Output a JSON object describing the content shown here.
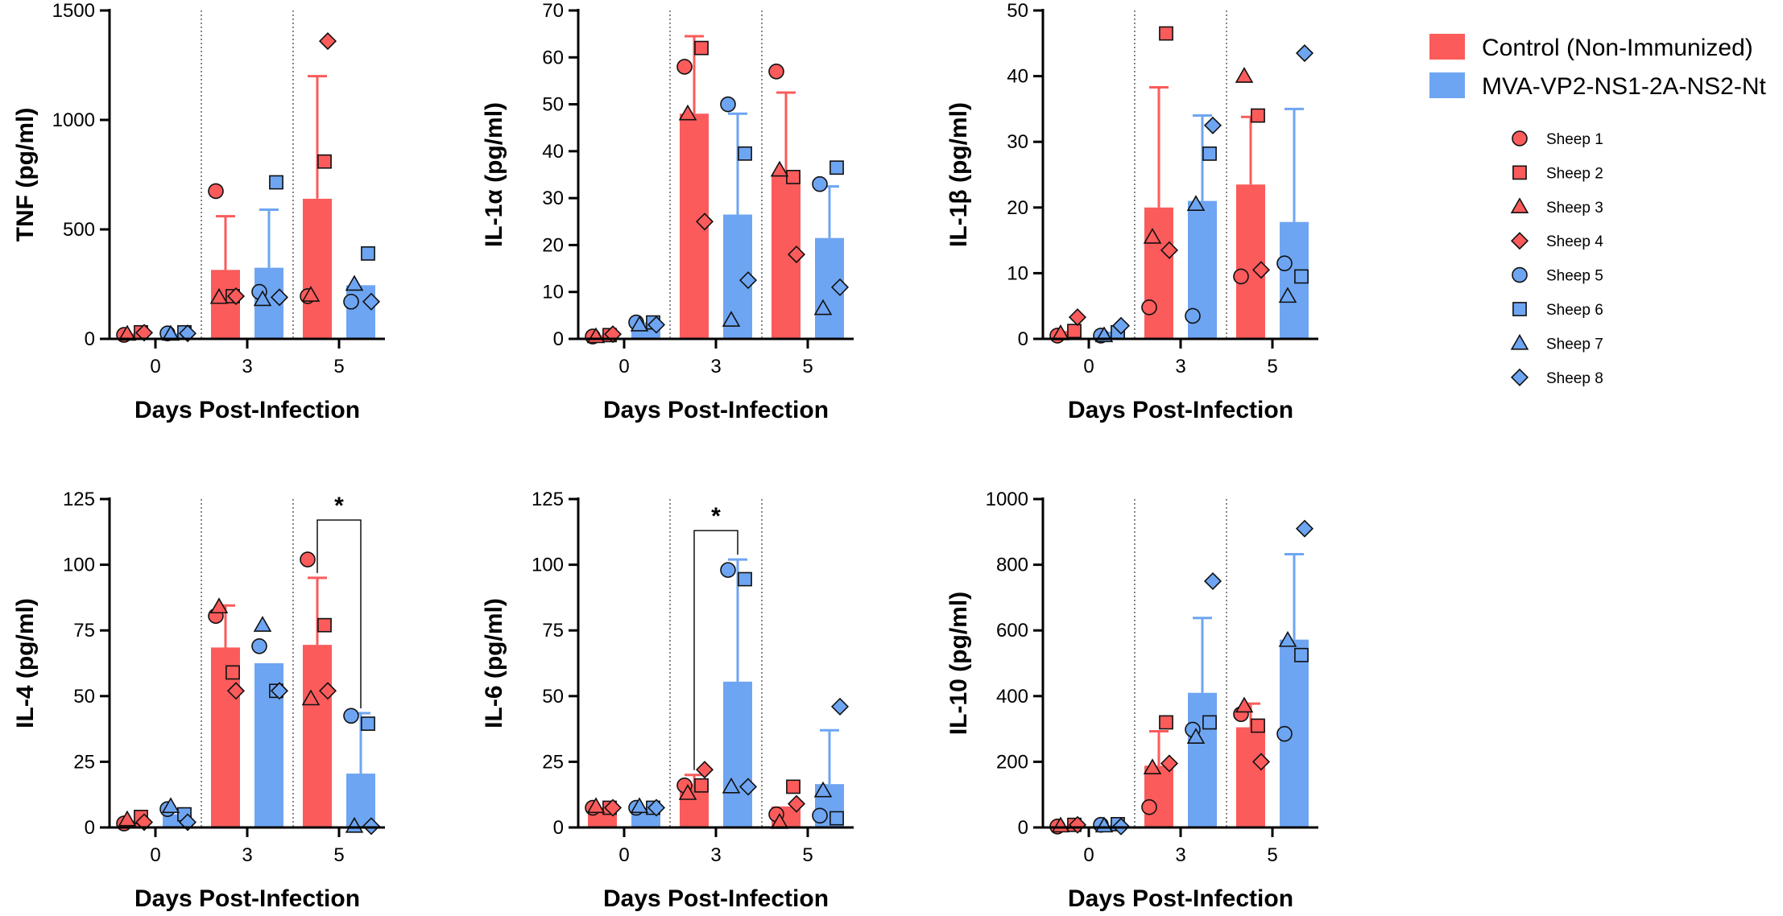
{
  "colors": {
    "control": "#fb5b5b",
    "vaccine": "#6ea5f2",
    "edge": "#111111",
    "axis": "#000000",
    "divider": "#555555"
  },
  "legend": {
    "groups": [
      {
        "label": "Control (Non-Immunized)",
        "color_key": "control"
      },
      {
        "label": "MVA-VP2-NS1-2A-NS2-Nt",
        "color_key": "vaccine"
      }
    ],
    "sheep": [
      {
        "label": "Sheep 1",
        "shape": "circle",
        "color_key": "control"
      },
      {
        "label": "Sheep 2",
        "shape": "square",
        "color_key": "control"
      },
      {
        "label": "Sheep 3",
        "shape": "triangle",
        "color_key": "control"
      },
      {
        "label": "Sheep 4",
        "shape": "diamond",
        "color_key": "control"
      },
      {
        "label": "Sheep 5",
        "shape": "circle",
        "color_key": "vaccine"
      },
      {
        "label": "Sheep 6",
        "shape": "square",
        "color_key": "vaccine"
      },
      {
        "label": "Sheep 7",
        "shape": "triangle",
        "color_key": "vaccine"
      },
      {
        "label": "Sheep 8",
        "shape": "diamond",
        "color_key": "vaccine"
      }
    ]
  },
  "chart_data": [
    {
      "type": "bar",
      "ylabel": "TNF (pg/ml)",
      "xlabel": "Days Post-Infection",
      "categories": [
        "0",
        "3",
        "5"
      ],
      "ylim": [
        0,
        1500
      ],
      "yticks": [
        0,
        500,
        1000,
        1500
      ],
      "series": [
        {
          "name": "Control (Non-Immunized)",
          "color_key": "control",
          "means": [
            25,
            315,
            640
          ],
          "sd": [
            0,
            245,
            560
          ],
          "points": [
            [
              18,
              30,
              22,
              28
            ],
            [
              675,
              195,
              190,
              195
            ],
            [
              195,
              810,
              200,
              1360
            ]
          ]
        },
        {
          "name": "MVA-VP2-NS1-2A-NS2-Nt",
          "color_key": "vaccine",
          "means": [
            25,
            325,
            245
          ],
          "sd": [
            0,
            265,
            0
          ],
          "points": [
            [
              25,
              30,
              22,
              25
            ],
            [
              215,
              715,
              180,
              190
            ],
            [
              170,
              390,
              250,
              170
            ]
          ]
        }
      ],
      "significance": []
    },
    {
      "type": "bar",
      "ylabel": "IL-1α (pg/ml)",
      "xlabel": "Days Post-Infection",
      "categories": [
        "0",
        "3",
        "5"
      ],
      "ylim": [
        0,
        70
      ],
      "yticks": [
        0,
        10,
        20,
        30,
        40,
        50,
        60,
        70
      ],
      "series": [
        {
          "name": "Control (Non-Immunized)",
          "color_key": "control",
          "means": [
            0.8,
            48,
            35
          ],
          "sd": [
            0,
            16.5,
            17.5
          ],
          "points": [
            [
              0.5,
              0.8,
              0.5,
              1.0
            ],
            [
              58,
              62,
              48,
              25
            ],
            [
              57,
              34.5,
              36,
              18
            ]
          ]
        },
        {
          "name": "MVA-VP2-NS1-2A-NS2-Nt",
          "color_key": "vaccine",
          "means": [
            3.5,
            26.5,
            21.5
          ],
          "sd": [
            0,
            21.5,
            11
          ],
          "points": [
            [
              3.5,
              3.5,
              3.0,
              3.0
            ],
            [
              50,
              39.5,
              4,
              12.5
            ],
            [
              33,
              36.5,
              6.5,
              11
            ]
          ]
        }
      ],
      "significance": []
    },
    {
      "type": "bar",
      "ylabel": "IL-1β (pg/ml)",
      "xlabel": "Days Post-Infection",
      "categories": [
        "0",
        "3",
        "5"
      ],
      "ylim": [
        0,
        50
      ],
      "yticks": [
        0,
        10,
        20,
        30,
        40,
        50
      ],
      "series": [
        {
          "name": "Control (Non-Immunized)",
          "color_key": "control",
          "means": [
            1.2,
            20,
            23.5
          ],
          "sd": [
            0,
            18.3,
            10.3
          ],
          "points": [
            [
              0.5,
              1.2,
              0.8,
              3.3
            ],
            [
              4.8,
              46.5,
              15.5,
              13.5
            ],
            [
              9.5,
              34,
              40,
              10.5
            ]
          ]
        },
        {
          "name": "MVA-VP2-NS1-2A-NS2-Nt",
          "color_key": "vaccine",
          "means": [
            1.1,
            21,
            17.8
          ],
          "sd": [
            0,
            13,
            17.2
          ],
          "points": [
            [
              0.5,
              1.0,
              0.5,
              2.0
            ],
            [
              3.5,
              28.2,
              20.5,
              32.5
            ],
            [
              11.5,
              9.5,
              6.5,
              43.5
            ]
          ]
        }
      ],
      "significance": []
    },
    {
      "type": "bar",
      "ylabel": "IL-4 (pg/ml)",
      "xlabel": "Days Post-Infection",
      "categories": [
        "0",
        "3",
        "5"
      ],
      "ylim": [
        0,
        125
      ],
      "yticks": [
        0,
        25,
        50,
        75,
        100,
        125
      ],
      "series": [
        {
          "name": "Control (Non-Immunized)",
          "color_key": "control",
          "means": [
            2.5,
            68.5,
            69.5
          ],
          "sd": [
            0,
            16,
            25.5
          ],
          "points": [
            [
              1.5,
              4,
              3,
              2
            ],
            [
              80.5,
              59,
              84,
              52
            ],
            [
              102,
              77,
              49,
              52
            ]
          ]
        },
        {
          "name": "MVA-VP2-NS1-2A-NS2-Nt",
          "color_key": "vaccine",
          "means": [
            5,
            62.5,
            20.5
          ],
          "sd": [
            0,
            0,
            23
          ],
          "points": [
            [
              7,
              5,
              8,
              2
            ],
            [
              69,
              52,
              77,
              52
            ],
            [
              42.5,
              39.5,
              0.5,
              0.5
            ]
          ]
        }
      ],
      "significance": [
        {
          "category_index": 2,
          "label": "*",
          "y": 117
        }
      ]
    },
    {
      "type": "bar",
      "ylabel": "IL-6 (pg/ml)",
      "xlabel": "Days Post-Infection",
      "categories": [
        "0",
        "3",
        "5"
      ],
      "ylim": [
        0,
        125
      ],
      "yticks": [
        0,
        25,
        50,
        75,
        100,
        125
      ],
      "series": [
        {
          "name": "Control (Non-Immunized)",
          "color_key": "control",
          "means": [
            7.5,
            16.5,
            8
          ],
          "sd": [
            0,
            3.5,
            0
          ],
          "points": [
            [
              7.5,
              7.5,
              8,
              7.5
            ],
            [
              16,
              16,
              13,
              22
            ],
            [
              5,
              15.5,
              2,
              9
            ]
          ]
        },
        {
          "name": "MVA-VP2-NS1-2A-NS2-Nt",
          "color_key": "vaccine",
          "means": [
            7.5,
            55.5,
            16.5
          ],
          "sd": [
            0,
            46.5,
            20.5
          ],
          "points": [
            [
              7.5,
              7.5,
              8,
              7.5
            ],
            [
              98,
              94.5,
              15.5,
              15.5
            ],
            [
              4.5,
              3.5,
              14,
              46
            ]
          ]
        }
      ],
      "significance": [
        {
          "category_index": 1,
          "label": "*",
          "y": 113
        }
      ]
    },
    {
      "type": "bar",
      "ylabel": "IL-10 (pg/ml)",
      "xlabel": "Days Post-Infection",
      "categories": [
        "0",
        "3",
        "5"
      ],
      "ylim": [
        0,
        1000
      ],
      "yticks": [
        0,
        200,
        400,
        600,
        800,
        1000
      ],
      "series": [
        {
          "name": "Control (Non-Immunized)",
          "color_key": "control",
          "means": [
            5,
            188,
            305
          ],
          "sd": [
            0,
            105,
            72
          ],
          "points": [
            [
              3,
              8,
              5,
              8
            ],
            [
              62,
              320,
              182,
              195
            ],
            [
              345,
              310,
              370,
              200
            ]
          ]
        },
        {
          "name": "MVA-VP2-NS1-2A-NS2-Nt",
          "color_key": "vaccine",
          "means": [
            8,
            410,
            572
          ],
          "sd": [
            0,
            228,
            260
          ],
          "points": [
            [
              8,
              10,
              5,
              3
            ],
            [
              298,
              320,
              275,
              750
            ],
            [
              285,
              525,
              570,
              910
            ]
          ]
        }
      ],
      "significance": []
    }
  ]
}
